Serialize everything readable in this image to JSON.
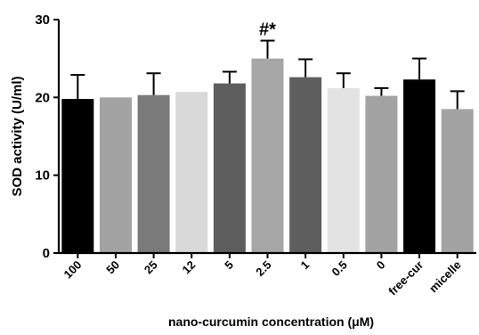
{
  "chart_data": {
    "type": "bar",
    "categories": [
      "100",
      "50",
      "25",
      "12",
      "5",
      "2.5",
      "1",
      "0.5",
      "0",
      "free-cur",
      "micelle"
    ],
    "values": [
      19.8,
      20.0,
      20.3,
      20.7,
      21.8,
      25.0,
      22.6,
      21.2,
      20.2,
      22.3,
      18.5
    ],
    "errors": [
      3.1,
      0.0,
      2.8,
      0.0,
      1.5,
      2.3,
      2.3,
      1.9,
      1.0,
      2.7,
      2.3
    ],
    "colors": [
      "#000000",
      "#a3a3a3",
      "#7a7a7a",
      "#d9d9d9",
      "#5e5e5e",
      "#a6a6a6",
      "#5e5e5e",
      "#e3e3e3",
      "#a3a3a3",
      "#000000",
      "#a3a3a3"
    ],
    "annotations": [
      {
        "category": "2.5",
        "text": "#*"
      }
    ],
    "xlabel": "nano-curcumin concentration (μM)",
    "ylabel": "SOD activity (U/ml)",
    "ylim": [
      0,
      30
    ],
    "yticks": [
      0,
      10,
      20,
      30
    ],
    "grid": false,
    "legend": "none"
  }
}
